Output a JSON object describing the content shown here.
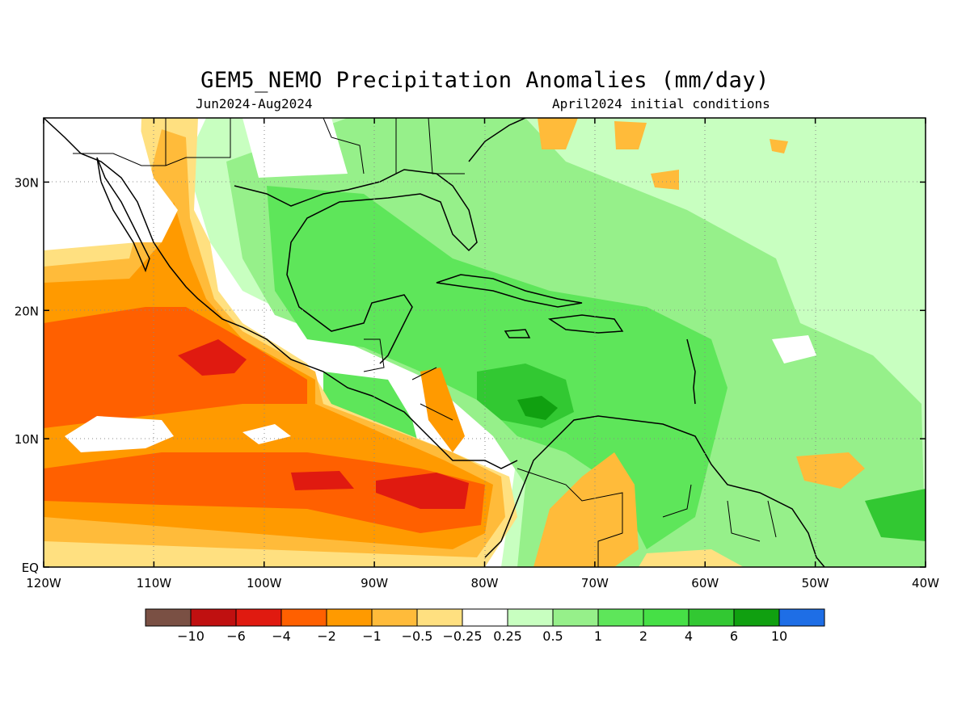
{
  "header": {
    "title": "GEM5_NEMO Precipitation Anomalies (mm/day)",
    "period": "Jun2024-Aug2024",
    "init": "April2024 initial conditions"
  },
  "map": {
    "projection": "lat-lon",
    "lon_range": [
      -120,
      -40
    ],
    "lat_range": [
      0,
      35
    ],
    "grid": "dotted",
    "x_ticks": [
      {
        "value": -120,
        "label": "120W"
      },
      {
        "value": -110,
        "label": "110W"
      },
      {
        "value": -100,
        "label": "100W"
      },
      {
        "value": -90,
        "label": "90W"
      },
      {
        "value": -80,
        "label": "80W"
      },
      {
        "value": -70,
        "label": "70W"
      },
      {
        "value": -60,
        "label": "60W"
      },
      {
        "value": -50,
        "label": "50W"
      },
      {
        "value": -40,
        "label": "40W"
      }
    ],
    "y_ticks": [
      {
        "value": 0,
        "label": "EQ"
      },
      {
        "value": 10,
        "label": "10N"
      },
      {
        "value": 20,
        "label": "20N"
      },
      {
        "value": 30,
        "label": "30N"
      }
    ]
  },
  "colorbar": {
    "colors": [
      "#7a5044",
      "#c01010",
      "#e01a10",
      "#ff6000",
      "#ff9a00",
      "#ffbb3a",
      "#ffe080",
      "#ffffff",
      "#c8ffc0",
      "#96f08a",
      "#5ee65a",
      "#46e046",
      "#32c832",
      "#10a010",
      "#1e6ee6"
    ],
    "labels": [
      "-10",
      "-6",
      "-4",
      "-2",
      "-1",
      "-0.5",
      "-0.25",
      "0.25",
      "0.5",
      "1",
      "2",
      "4",
      "6",
      "10"
    ]
  },
  "fields": {
    "dry": [
      "#ffe080",
      "#ffbb3a",
      "#ff9a00",
      "#ff6000",
      "#e01a10"
    ],
    "wet": [
      "#c8ffc0",
      "#96f08a",
      "#5ee65a",
      "#32c832",
      "#10a010"
    ]
  }
}
